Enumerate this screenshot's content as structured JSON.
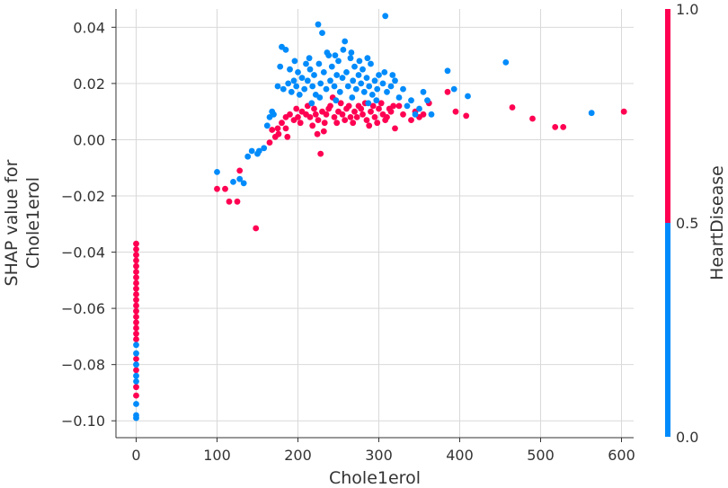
{
  "chart_data": {
    "type": "scatter",
    "xlabel": "Chole1erol",
    "ylabel_lines": [
      "SHAP value for",
      "Chole1erol"
    ],
    "xlim": [
      -25,
      615
    ],
    "ylim": [
      -0.106,
      0.0465
    ],
    "x_ticks": [
      0,
      100,
      200,
      300,
      400,
      500,
      600
    ],
    "x_tick_labels": [
      "0",
      "100",
      "200",
      "300",
      "400",
      "500",
      "600"
    ],
    "y_ticks": [
      0.04,
      0.02,
      0.0,
      -0.02,
      -0.04,
      -0.06,
      -0.08,
      -0.1
    ],
    "y_tick_labels": [
      "0.04",
      "0.02",
      "0.00",
      "−0.02",
      "−0.04",
      "−0.06",
      "−0.08",
      "−0.10"
    ],
    "grid": true,
    "color_feature": "HeartDisease",
    "colorbar": {
      "label": "HeartDisease",
      "tick_labels": [
        "1.0",
        "0.5",
        "0.0"
      ],
      "tick_values": [
        1.0,
        0.5,
        0.0
      ],
      "low_color": "#008bfb",
      "high_color": "#ff0052",
      "position": "right"
    },
    "series": [
      {
        "color": "#ff0052",
        "points": [
          [
            0,
            -0.037
          ],
          [
            0,
            -0.039
          ],
          [
            0,
            -0.041
          ],
          [
            0,
            -0.043
          ],
          [
            0,
            -0.045
          ],
          [
            0,
            -0.047
          ],
          [
            0,
            -0.049
          ],
          [
            0,
            -0.051
          ],
          [
            0,
            -0.053
          ],
          [
            0,
            -0.055
          ],
          [
            0,
            -0.057
          ],
          [
            0,
            -0.059
          ],
          [
            0,
            -0.061
          ],
          [
            0,
            -0.063
          ],
          [
            0,
            -0.065
          ],
          [
            0,
            -0.067
          ],
          [
            0,
            -0.069
          ],
          [
            0,
            -0.071
          ],
          [
            0,
            -0.078
          ],
          [
            0,
            -0.082
          ],
          [
            0,
            -0.088
          ],
          [
            0,
            -0.091
          ],
          [
            100,
            -0.0175
          ],
          [
            110,
            -0.0175
          ],
          [
            115,
            -0.022
          ],
          [
            125,
            -0.022
          ],
          [
            128,
            -0.011
          ],
          [
            148,
            -0.0315
          ],
          [
            165,
            -0.001
          ],
          [
            172,
            0.001
          ],
          [
            175,
            0.004
          ],
          [
            180,
            0.006
          ],
          [
            185,
            0.008
          ],
          [
            190,
            0.009
          ],
          [
            195,
            0.007
          ],
          [
            200,
            0.008
          ],
          [
            205,
            0.01
          ],
          [
            210,
            0.009
          ],
          [
            215,
            0.008
          ],
          [
            220,
            0.011
          ],
          [
            225,
            0.007
          ],
          [
            228,
            -0.005
          ],
          [
            230,
            0.01
          ],
          [
            235,
            0.009
          ],
          [
            240,
            0.012
          ],
          [
            245,
            0.008
          ],
          [
            250,
            0.01
          ],
          [
            255,
            0.009
          ],
          [
            260,
            0.011
          ],
          [
            265,
            0.008
          ],
          [
            270,
            0.01
          ],
          [
            275,
            0.012
          ],
          [
            280,
            0.009
          ],
          [
            285,
            0.007
          ],
          [
            290,
            0.01
          ],
          [
            295,
            0.008
          ],
          [
            300,
            0.011
          ],
          [
            305,
            0.009
          ],
          [
            310,
            0.008
          ],
          [
            315,
            0.01
          ],
          [
            320,
            0.004
          ],
          [
            325,
            0.012
          ],
          [
            330,
            0.009
          ],
          [
            340,
            0.007
          ],
          [
            345,
            0.01
          ],
          [
            350,
            0.008
          ],
          [
            355,
            0.009
          ],
          [
            362,
            0.013
          ],
          [
            385,
            0.017
          ],
          [
            395,
            0.01
          ],
          [
            408,
            0.0085
          ],
          [
            465,
            0.0115
          ],
          [
            490,
            0.0075
          ],
          [
            518,
            0.0045
          ],
          [
            528,
            0.0045
          ],
          [
            603,
            0.01
          ],
          [
            185,
            0.004
          ],
          [
            198,
            0.011
          ],
          [
            203,
            0.006
          ],
          [
            212,
            0.012
          ],
          [
            218,
            0.005
          ],
          [
            222,
            0.009
          ],
          [
            233,
            0.006
          ],
          [
            238,
            0.011
          ],
          [
            243,
            0.015
          ],
          [
            248,
            0.006
          ],
          [
            253,
            0.013
          ],
          [
            258,
            0.007
          ],
          [
            263,
            0.012
          ],
          [
            268,
            0.006
          ],
          [
            273,
            0.008
          ],
          [
            278,
            0.011
          ],
          [
            283,
            0.013
          ],
          [
            288,
            0.005
          ],
          [
            293,
            0.012
          ],
          [
            298,
            0.006
          ],
          [
            303,
            0.013
          ],
          [
            308,
            0.007
          ],
          [
            313,
            0.011
          ],
          [
            318,
            0.012
          ],
          [
            224,
            0.002
          ],
          [
            232,
            0.003
          ],
          [
            187,
            0.001
          ],
          [
            176,
            0.002
          ],
          [
            168,
            0.0035
          ]
        ]
      },
      {
        "color": "#008bfb",
        "points": [
          [
            0,
            -0.073
          ],
          [
            0,
            -0.076
          ],
          [
            0,
            -0.08
          ],
          [
            0,
            -0.084
          ],
          [
            0,
            -0.086
          ],
          [
            0,
            -0.094
          ],
          [
            0,
            -0.098
          ],
          [
            0,
            -0.099
          ],
          [
            100,
            -0.0115
          ],
          [
            120,
            -0.015
          ],
          [
            128,
            -0.014
          ],
          [
            133,
            -0.0155
          ],
          [
            138,
            -0.006
          ],
          [
            143,
            -0.004
          ],
          [
            150,
            -0.005
          ],
          [
            152,
            -0.004
          ],
          [
            158,
            -0.003
          ],
          [
            162,
            0.005
          ],
          [
            165,
            0.008
          ],
          [
            168,
            0.01
          ],
          [
            170,
            0.009
          ],
          [
            175,
            0.019
          ],
          [
            178,
            0.026
          ],
          [
            180,
            0.033
          ],
          [
            182,
            0.018
          ],
          [
            185,
            0.032
          ],
          [
            188,
            0.02
          ],
          [
            190,
            0.025
          ],
          [
            192,
            0.017
          ],
          [
            195,
            0.021
          ],
          [
            198,
            0.019
          ],
          [
            200,
            0.024
          ],
          [
            202,
            0.016
          ],
          [
            205,
            0.022
          ],
          [
            208,
            0.018
          ],
          [
            210,
            0.027
          ],
          [
            212,
            0.021
          ],
          [
            215,
            0.025
          ],
          [
            218,
            0.019
          ],
          [
            220,
            0.023
          ],
          [
            222,
            0.016
          ],
          [
            225,
            0.041
          ],
          [
            228,
            0.02
          ],
          [
            230,
            0.038
          ],
          [
            232,
            0.024
          ],
          [
            235,
            0.018
          ],
          [
            238,
            0.03
          ],
          [
            240,
            0.021
          ],
          [
            242,
            0.026
          ],
          [
            245,
            0.019
          ],
          [
            248,
            0.023
          ],
          [
            250,
            0.028
          ],
          [
            252,
            0.017
          ],
          [
            255,
            0.022
          ],
          [
            258,
            0.035
          ],
          [
            260,
            0.024
          ],
          [
            262,
            0.019
          ],
          [
            265,
            0.029
          ],
          [
            268,
            0.021
          ],
          [
            270,
            0.026
          ],
          [
            272,
            0.018
          ],
          [
            275,
            0.023
          ],
          [
            278,
            0.02
          ],
          [
            280,
            0.025
          ],
          [
            282,
            0.017
          ],
          [
            285,
            0.022
          ],
          [
            288,
            0.019
          ],
          [
            290,
            0.027
          ],
          [
            292,
            0.016
          ],
          [
            295,
            0.021
          ],
          [
            298,
            0.018
          ],
          [
            300,
            0.023
          ],
          [
            305,
            0.02
          ],
          [
            308,
            0.044
          ],
          [
            310,
            0.017
          ],
          [
            315,
            0.019
          ],
          [
            320,
            0.021
          ],
          [
            325,
            0.015
          ],
          [
            330,
            0.018
          ],
          [
            335,
            0.012
          ],
          [
            340,
            0.014
          ],
          [
            345,
            0.009
          ],
          [
            350,
            0.011
          ],
          [
            355,
            0.017
          ],
          [
            360,
            0.014
          ],
          [
            365,
            0.009
          ],
          [
            385,
            0.0245
          ],
          [
            393,
            0.018
          ],
          [
            410,
            0.0155
          ],
          [
            457,
            0.0275
          ],
          [
            563,
            0.0095
          ],
          [
            196,
            0.028
          ],
          [
            214,
            0.029
          ],
          [
            226,
            0.027
          ],
          [
            236,
            0.031
          ],
          [
            246,
            0.03
          ],
          [
            256,
            0.032
          ],
          [
            266,
            0.031
          ],
          [
            276,
            0.028
          ],
          [
            286,
            0.029
          ],
          [
            217,
            0.013
          ],
          [
            227,
            0.015
          ],
          [
            247,
            0.014
          ],
          [
            267,
            0.015
          ],
          [
            287,
            0.013
          ],
          [
            297,
            0.014
          ],
          [
            307,
            0.024
          ],
          [
            317,
            0.023
          ]
        ]
      }
    ]
  }
}
